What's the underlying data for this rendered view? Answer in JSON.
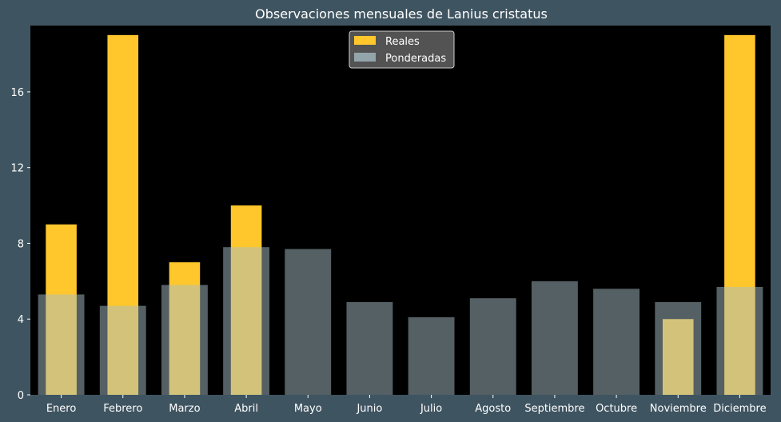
{
  "chart_data": {
    "type": "bar",
    "title": "Observaciones mensuales de Lanius cristatus",
    "xlabel": "",
    "ylabel": "",
    "categories": [
      "Enero",
      "Febrero",
      "Marzo",
      "Abril",
      "Mayo",
      "Junio",
      "Julio",
      "Agosto",
      "Septiembre",
      "Octubre",
      "Noviembre",
      "Diciembre"
    ],
    "series": [
      {
        "name": "Reales",
        "values": [
          9,
          19,
          7,
          10,
          0,
          0,
          0,
          0,
          0,
          0,
          4,
          19
        ],
        "color": "#ffc72c"
      },
      {
        "name": "Ponderadas",
        "values": [
          5.3,
          4.7,
          5.8,
          7.8,
          7.7,
          4.9,
          4.1,
          5.1,
          6.0,
          5.6,
          4.9,
          5.7
        ],
        "color": "#a8c0c8"
      }
    ],
    "ylim": [
      0,
      19.5
    ],
    "yticks": [
      0,
      4,
      8,
      12,
      16
    ],
    "grid": false,
    "legend": "top-center",
    "colors": {
      "figure_background": "#3f5461",
      "plot_background": "#000000",
      "text": "#ffffff",
      "legend_background": "#5a5a5a"
    }
  }
}
